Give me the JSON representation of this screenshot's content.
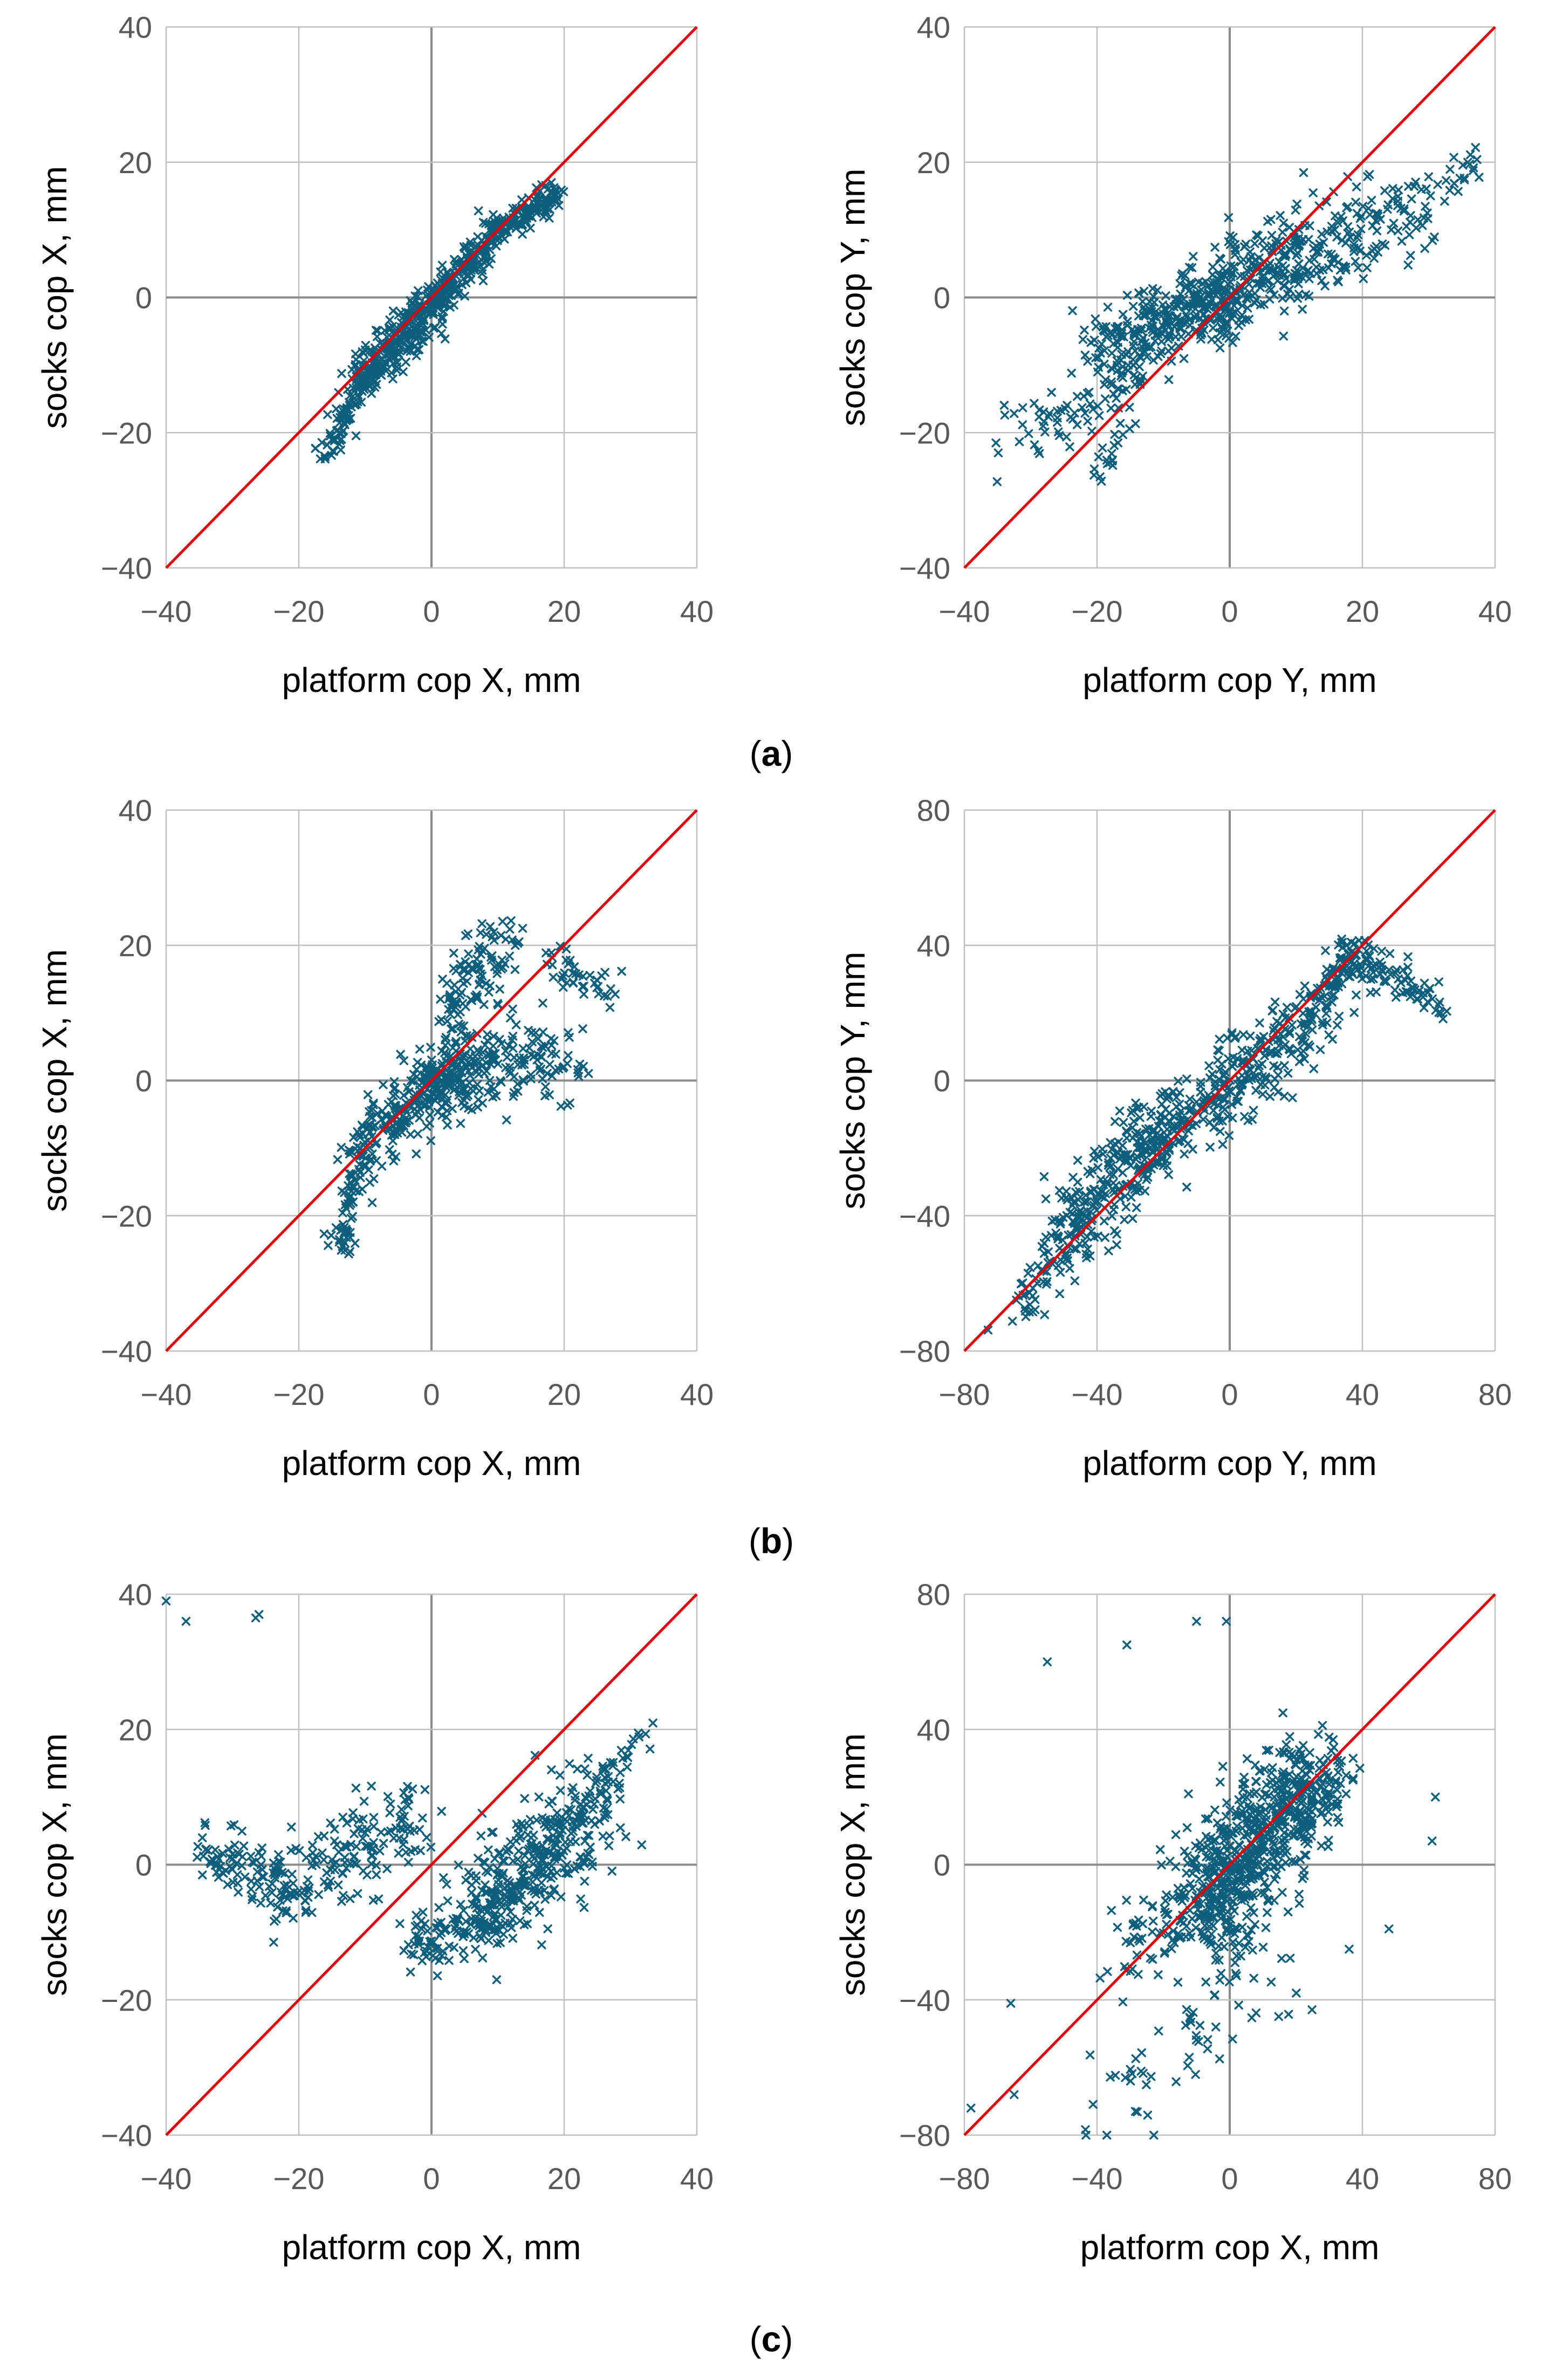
{
  "colors": {
    "points": "#0e5f7e",
    "identity_line": "#e3000b",
    "grid": "#bfbfbf",
    "axis": "#8c8c8c"
  },
  "captions": [
    {
      "open": "(",
      "letter": "a",
      "close": ")"
    },
    {
      "open": "(",
      "letter": "b",
      "close": ")"
    },
    {
      "open": "(",
      "letter": "c",
      "close": ")"
    }
  ],
  "chart_data": [
    {
      "type": "scatter",
      "panel": "a-left",
      "xlabel": "platform cop X, mm",
      "ylabel": "socks cop X, mm",
      "xlim": [
        -40,
        40
      ],
      "ylim": [
        -40,
        40
      ],
      "xticks": [
        -40,
        -20,
        0,
        20,
        40
      ],
      "yticks": [
        -40,
        -20,
        0,
        20,
        40
      ],
      "reference_line": "y = x",
      "marker": "x",
      "clusters": [
        {
          "x0": -16,
          "y0": -23,
          "x1": -10,
          "y1": -12,
          "spread": 1.2,
          "n": 80
        },
        {
          "x0": -11,
          "y0": -13,
          "x1": 0,
          "y1": -1,
          "spread": 1.8,
          "n": 260
        },
        {
          "x0": 0,
          "y0": -1,
          "x1": 10,
          "y1": 10,
          "spread": 1.4,
          "n": 200
        },
        {
          "x0": 10,
          "y0": 10,
          "x1": 19,
          "y1": 15,
          "spread": 1.0,
          "n": 120
        }
      ]
    },
    {
      "type": "scatter",
      "panel": "a-right",
      "xlabel": "platform cop Y, mm",
      "ylabel": "socks cop Y, mm",
      "xlim": [
        -40,
        40
      ],
      "ylim": [
        -40,
        40
      ],
      "xticks": [
        -40,
        -20,
        0,
        20,
        40
      ],
      "yticks": [
        -40,
        -20,
        0,
        20,
        40
      ],
      "reference_line": "y = x",
      "marker": "x",
      "clusters": [
        {
          "x0": -33,
          "y0": -22,
          "x1": -12,
          "y1": -10,
          "spread": 2.5,
          "n": 80
        },
        {
          "x0": -20,
          "y0": -8,
          "x1": 0,
          "y1": 1,
          "spread": 3.0,
          "n": 260
        },
        {
          "x0": -5,
          "y0": -2,
          "x1": 12,
          "y1": 8,
          "spread": 3.5,
          "n": 220
        },
        {
          "x0": 8,
          "y0": 4,
          "x1": 28,
          "y1": 14,
          "spread": 3.5,
          "n": 150
        },
        {
          "x0": 28,
          "y0": 14,
          "x1": 40,
          "y1": 22,
          "spread": 1.5,
          "n": 25
        },
        {
          "x0": -20,
          "y0": -27,
          "x1": -15,
          "y1": -18,
          "spread": 1.2,
          "n": 20
        }
      ]
    },
    {
      "type": "scatter",
      "panel": "b-left",
      "xlabel": "platform cop X, mm",
      "ylabel": "socks cop X, mm",
      "xlim": [
        -40,
        40
      ],
      "ylim": [
        -40,
        40
      ],
      "xticks": [
        -40,
        -20,
        0,
        20,
        40
      ],
      "yticks": [
        -40,
        -20,
        0,
        20,
        40
      ],
      "reference_line": "y = x",
      "marker": "x",
      "clusters": [
        {
          "x0": -14,
          "y0": -26,
          "x1": -10,
          "y1": -8,
          "spread": 1.5,
          "n": 90
        },
        {
          "x0": -10,
          "y0": -8,
          "x1": 5,
          "y1": 2,
          "spread": 2.5,
          "n": 220
        },
        {
          "x0": 0,
          "y0": 0,
          "x1": 20,
          "y1": 4,
          "spread": 3.5,
          "n": 200
        },
        {
          "x0": 2,
          "y0": 10,
          "x1": 12,
          "y1": 21,
          "spread": 2.5,
          "n": 110
        },
        {
          "x0": 18,
          "y0": 18,
          "x1": 28,
          "y1": 12,
          "spread": 1.5,
          "n": 40
        }
      ]
    },
    {
      "type": "scatter",
      "panel": "b-right",
      "xlabel": "platform cop Y, mm",
      "ylabel": "socks cop Y, mm",
      "xlim": [
        -80,
        80
      ],
      "ylim": [
        -80,
        80
      ],
      "xticks": [
        -80,
        -40,
        0,
        40,
        80
      ],
      "yticks": [
        -80,
        -40,
        0,
        40,
        80
      ],
      "reference_line": "y = x",
      "marker": "x",
      "clusters": [
        {
          "x0": -65,
          "y0": -70,
          "x1": -45,
          "y1": -45,
          "spread": 4,
          "n": 60
        },
        {
          "x0": -50,
          "y0": -45,
          "x1": -20,
          "y1": -15,
          "spread": 6,
          "n": 240
        },
        {
          "x0": -25,
          "y0": -20,
          "x1": 15,
          "y1": 10,
          "spread": 6,
          "n": 240
        },
        {
          "x0": 15,
          "y0": 10,
          "x1": 40,
          "y1": 38,
          "spread": 5,
          "n": 140
        },
        {
          "x0": 35,
          "y0": 38,
          "x1": 63,
          "y1": 22,
          "spread": 3,
          "n": 80
        }
      ]
    },
    {
      "type": "scatter",
      "panel": "c-left",
      "xlabel": "platform cop X, mm",
      "ylabel": "socks cop X, mm",
      "xlim": [
        -40,
        40
      ],
      "ylim": [
        -40,
        40
      ],
      "xticks": [
        -40,
        -20,
        0,
        20,
        40
      ],
      "yticks": [
        -40,
        -20,
        0,
        20,
        40
      ],
      "reference_line": "y = x",
      "marker": "x",
      "clusters": [
        {
          "x0": -35,
          "y0": 3,
          "x1": -20,
          "y1": -5,
          "spread": 2.5,
          "n": 110
        },
        {
          "x0": -20,
          "y0": -3,
          "x1": -2,
          "y1": 8,
          "spread": 3.5,
          "n": 140
        },
        {
          "x0": -3,
          "y0": -12,
          "x1": 12,
          "y1": -6,
          "spread": 2.5,
          "n": 120
        },
        {
          "x0": 8,
          "y0": -6,
          "x1": 24,
          "y1": 8,
          "spread": 4,
          "n": 320
        },
        {
          "x0": 22,
          "y0": 8,
          "x1": 33,
          "y1": 19,
          "spread": 1.5,
          "n": 40
        }
      ],
      "outliers": [
        [
          -40,
          39
        ],
        [
          -37,
          36
        ],
        [
          -26,
          37
        ],
        [
          -26.5,
          36.5
        ]
      ]
    },
    {
      "type": "scatter",
      "panel": "c-right",
      "xlabel": "platform cop X, mm",
      "ylabel": "socks cop X, mm",
      "xlim": [
        -80,
        80
      ],
      "ylim": [
        -80,
        80
      ],
      "xticks": [
        -80,
        -40,
        0,
        40,
        80
      ],
      "yticks": [
        -80,
        -40,
        0,
        40,
        80
      ],
      "reference_line": "y = x",
      "marker": "x",
      "clusters": [
        {
          "x0": -10,
          "y0": -10,
          "x1": 25,
          "y1": 25,
          "spread": 9,
          "n": 520
        },
        {
          "x0": -30,
          "y0": -20,
          "x1": 10,
          "y1": -15,
          "spread": 7,
          "n": 120
        },
        {
          "x0": 0,
          "y0": -5,
          "x1": 35,
          "y1": 30,
          "spread": 5,
          "n": 120
        },
        {
          "x0": -40,
          "y0": -70,
          "x1": 20,
          "y1": -30,
          "spread": 8,
          "n": 60
        }
      ],
      "outliers": [
        [
          -78,
          -72
        ],
        [
          -65,
          -68
        ],
        [
          -66,
          -41
        ],
        [
          -55,
          60
        ],
        [
          -31,
          65
        ],
        [
          -10,
          72
        ],
        [
          -1,
          72
        ],
        [
          62,
          20
        ],
        [
          61,
          7
        ],
        [
          48,
          -19
        ],
        [
          36,
          -25
        ]
      ]
    }
  ]
}
